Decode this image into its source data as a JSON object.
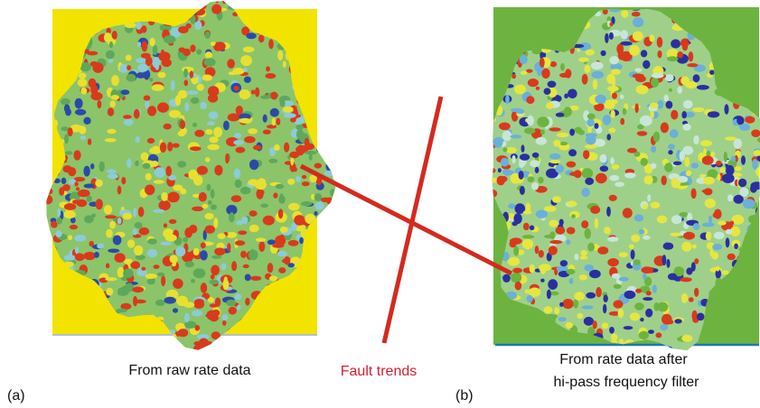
{
  "panels": [
    {
      "letter": "(a)",
      "caption": [
        "From raw rate data"
      ]
    },
    {
      "letter": "(b)",
      "caption": [
        "From rate data after",
        "hi-pass frequency filter"
      ]
    }
  ],
  "annotation": "Fault trends"
}
